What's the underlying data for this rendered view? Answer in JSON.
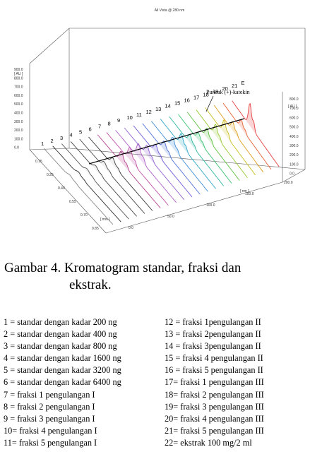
{
  "figure": {
    "header_label": "All Vista @ 280 nm",
    "left_axis_unit": "[ AU ]",
    "left_axis_ticks": [
      "900.0",
      "800.0",
      "700.0",
      "600.0",
      "500.0",
      "400.0",
      "300.0",
      "200.0",
      "100.0",
      "0.0"
    ],
    "right_axis_unit": "[ AU ]",
    "right_axis_ticks": [
      "800.0",
      "700.0",
      "600.0",
      "500.0",
      "400.0",
      "300.0",
      "200.0",
      "100.0",
      "0.0"
    ],
    "time_axis_unit": "[ min ]",
    "time_axis_ticks": [
      "0.15",
      "0.25",
      "0.40",
      "0.55",
      "0.70",
      "0.85"
    ],
    "wavelength_axis_unit": "[ nm ]",
    "wavelength_axis_ticks": [
      "200.0",
      "150.0",
      "100.0",
      "50.0",
      "0.0"
    ],
    "lane_numbers": [
      "1",
      "2",
      "3",
      "4",
      "5",
      "6",
      "7",
      "8",
      "9",
      "10",
      "11",
      "12",
      "13",
      "14",
      "15",
      "16",
      "17",
      "18",
      "19",
      "20",
      "21",
      "E"
    ],
    "peak_label": "Puncak (+)-katekin",
    "lane_colors": [
      "#8a8a8a",
      "#2f2f2f",
      "#555555",
      "#444444",
      "#4a4a4a",
      "#3a3a3a",
      "#b4418f",
      "#c052a8",
      "#b062c8",
      "#9060d0",
      "#6a5ad8",
      "#4f72d8",
      "#3f8fd8",
      "#2fa8c8",
      "#2fb8a0",
      "#38c070",
      "#5ec040",
      "#98c830",
      "#c8c020",
      "#e0a020",
      "#e86030",
      "#e84040"
    ]
  },
  "caption": {
    "line1": "Gambar 4. Kromatogram standar, fraksi dan",
    "line2": "ekstrak."
  },
  "legend": {
    "left": [
      "1 = standar dengan kadar 200 ng",
      "2 = standar dengan kadar 400 ng",
      "3 = standar dengan kadar 800 ng",
      "4 = standar dengan kadar 1600 ng",
      "5 = standar dengan kadar 3200 ng",
      "6 = standar dengan kadar 6400 ng",
      "7 = fraksi 1 pengulangan I",
      "8 = fraksi 2 pengulangan I",
      "9 = fraksi 3 pengulangan I",
      "10= fraksi 4 pengulangan I",
      "11= fraksi 5 pengulangan I"
    ],
    "right": [
      "12 = fraksi 1pengulangan II",
      "13 = fraksi 2pengulangan II",
      "14 = fraksi 3pengulangan II",
      "15 = fraksi 4 pengulangan II",
      "16 = fraksi 5 pengulangan II",
      "17= fraksi 1 pengulangan  III",
      "18= fraksi 2 pengulangan III",
      "19= fraksi 3 pengulangan III",
      "20= fraksi 4 pengulangan III",
      "21= fraksi 5 pengulangan III",
      "22= ekstrak 100 mg/2 ml"
    ]
  }
}
